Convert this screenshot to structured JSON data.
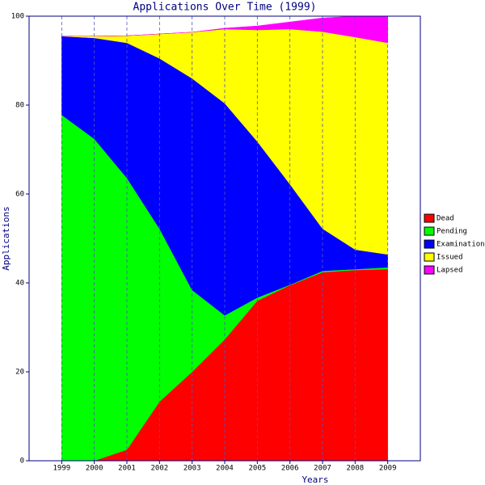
{
  "chart_data": {
    "type": "stacked_area",
    "title": "Applications Over Time (1999)",
    "xlabel": "Years",
    "ylabel": "Applications",
    "x": [
      1999,
      2000,
      2001,
      2002,
      2003,
      2004,
      2005,
      2006,
      2007,
      2008,
      2009
    ],
    "series": [
      {
        "name": "Dead",
        "color": "#ff0000",
        "values": [
          0,
          0,
          2.5,
          13.3,
          20,
          27.3,
          36,
          39.5,
          42.4,
          42.9,
          43.1
        ]
      },
      {
        "name": "Pending",
        "color": "#00ff00",
        "values": [
          77.8,
          72.4,
          61.1,
          38.9,
          18.4,
          5.4,
          0.7,
          0.1,
          0.3,
          0.2,
          0.4
        ]
      },
      {
        "name": "Examination",
        "color": "#0000ff",
        "values": [
          17.7,
          22.7,
          30.4,
          38.3,
          47.6,
          47.7,
          35.1,
          22.6,
          9.5,
          4.4,
          2.9
        ]
      },
      {
        "name": "Issued",
        "color": "#ffff00",
        "values": [
          0,
          0.4,
          1.6,
          5.5,
          10.4,
          16.7,
          25.1,
          34.9,
          44.3,
          47.8,
          47.6
        ]
      },
      {
        "name": "Lapsed",
        "color": "#ff00ff",
        "values": [
          0,
          0,
          0,
          0,
          0,
          0.2,
          0.9,
          1.6,
          3.1,
          4.7,
          6
        ]
      }
    ],
    "xlim": [
      1998,
      2010
    ],
    "xticks": [
      1999,
      2000,
      2001,
      2002,
      2003,
      2004,
      2005,
      2006,
      2007,
      2008,
      2009
    ],
    "ylim": [
      0,
      100
    ],
    "yticks": [
      0,
      20,
      40,
      60,
      80,
      100
    ],
    "grid": true
  }
}
